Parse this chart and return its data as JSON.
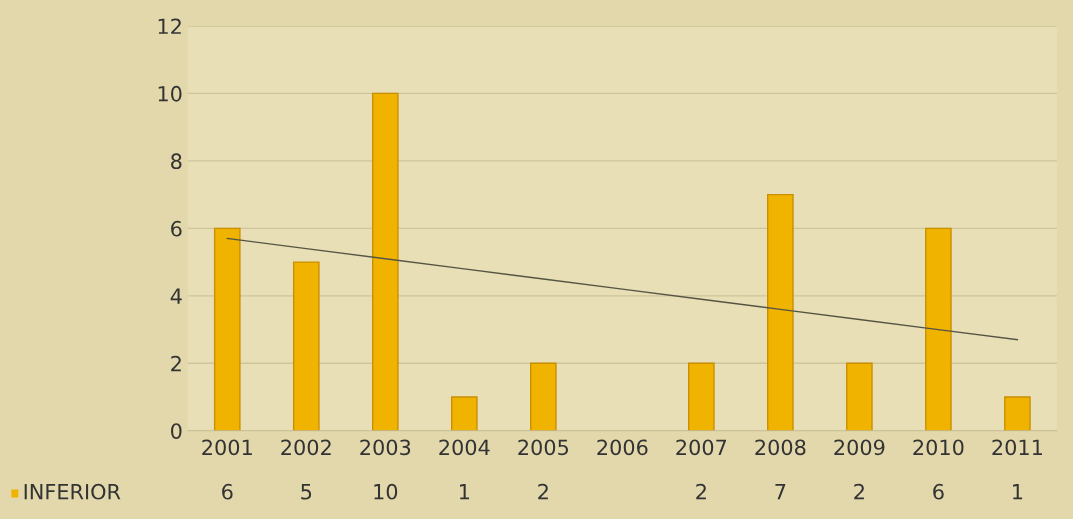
{
  "chart_data": {
    "type": "bar",
    "categories": [
      "2001",
      "2002",
      "2003",
      "2004",
      "2005",
      "2006",
      "2007",
      "2008",
      "2009",
      "2010",
      "2011"
    ],
    "series": [
      {
        "name": "INFERIOR",
        "color": "#f0b400",
        "values": [
          6,
          5,
          10,
          1,
          2,
          null,
          2,
          7,
          2,
          6,
          1
        ],
        "value_labels": [
          "6",
          "5",
          "10",
          "1",
          "2",
          null,
          "2",
          "7",
          "2",
          "6",
          "1"
        ]
      },
      {
        "type": "line",
        "color": "#555544",
        "values": [
          5.7,
          5.4,
          5.1,
          4.8,
          4.5,
          4.2,
          3.9,
          3.6,
          3.3,
          3.0,
          2.7
        ]
      }
    ],
    "ylim": [
      0,
      12
    ],
    "yticks": [
      0,
      2,
      4,
      6,
      8,
      10,
      12
    ],
    "grid": "y",
    "legend": "bottom left"
  }
}
